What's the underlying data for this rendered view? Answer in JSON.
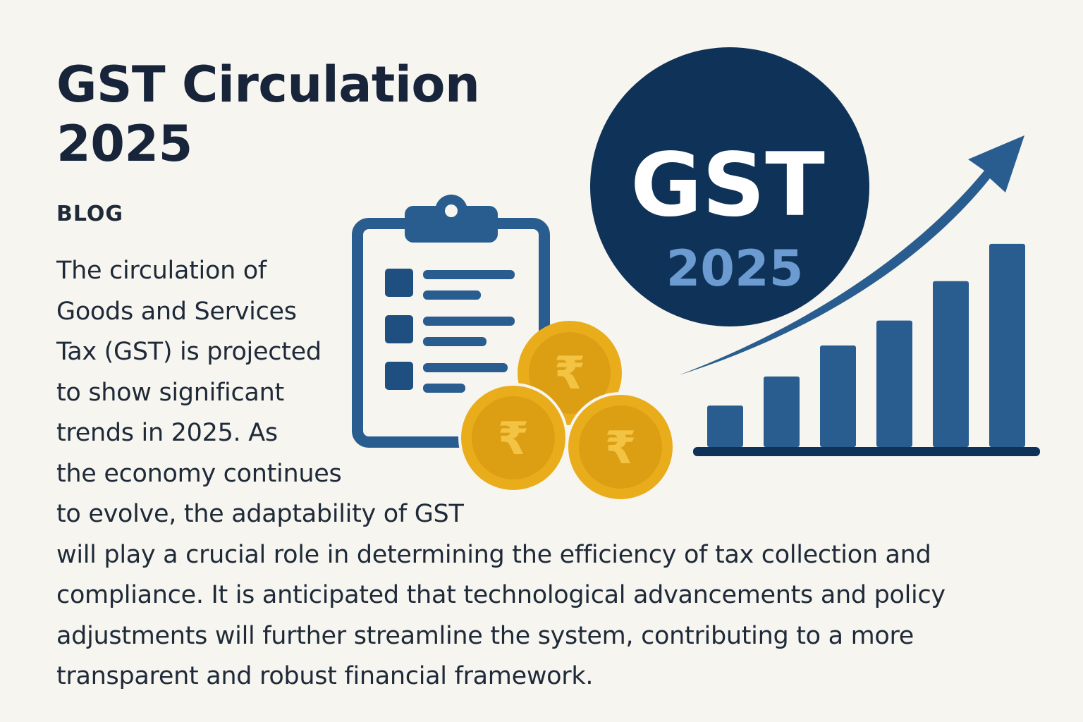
{
  "title_lines": [
    "GST Circulation",
    "2025"
  ],
  "tag": "BLOG",
  "body_lines": [
    "The circulation of",
    "Goods and Services",
    "Tax (GST) is projected",
    "to show significant",
    "trends in 2025. As",
    "the economy continues",
    "to evolve, the adaptability of GST",
    "will play a crucial role in determining the efficiency of tax collection and",
    "compliance. It is anticipated that technological advancements and policy",
    "adjustments will further streamline the system, contributing to a more",
    "transparent and robust financial framework."
  ],
  "badge": {
    "top": "GST",
    "bottom": "2025"
  },
  "coin_symbol": "₹",
  "chart_data": {
    "type": "bar",
    "bars_relative": [
      0.2,
      0.34,
      0.49,
      0.61,
      0.8,
      0.98
    ],
    "trend": "rising arrow"
  },
  "colors": {
    "navy": "#0f3358",
    "blue": "#295d8f",
    "light_blue": "#6b9bd0",
    "gold": "#e9ad1c",
    "gold_dark": "#c98f0c",
    "background": "#f7f5f0",
    "text": "#1e2a38"
  },
  "icons": [
    "clipboard-checklist-icon",
    "rupee-coin-icon",
    "trend-arrow-icon",
    "bar-chart-icon"
  ]
}
